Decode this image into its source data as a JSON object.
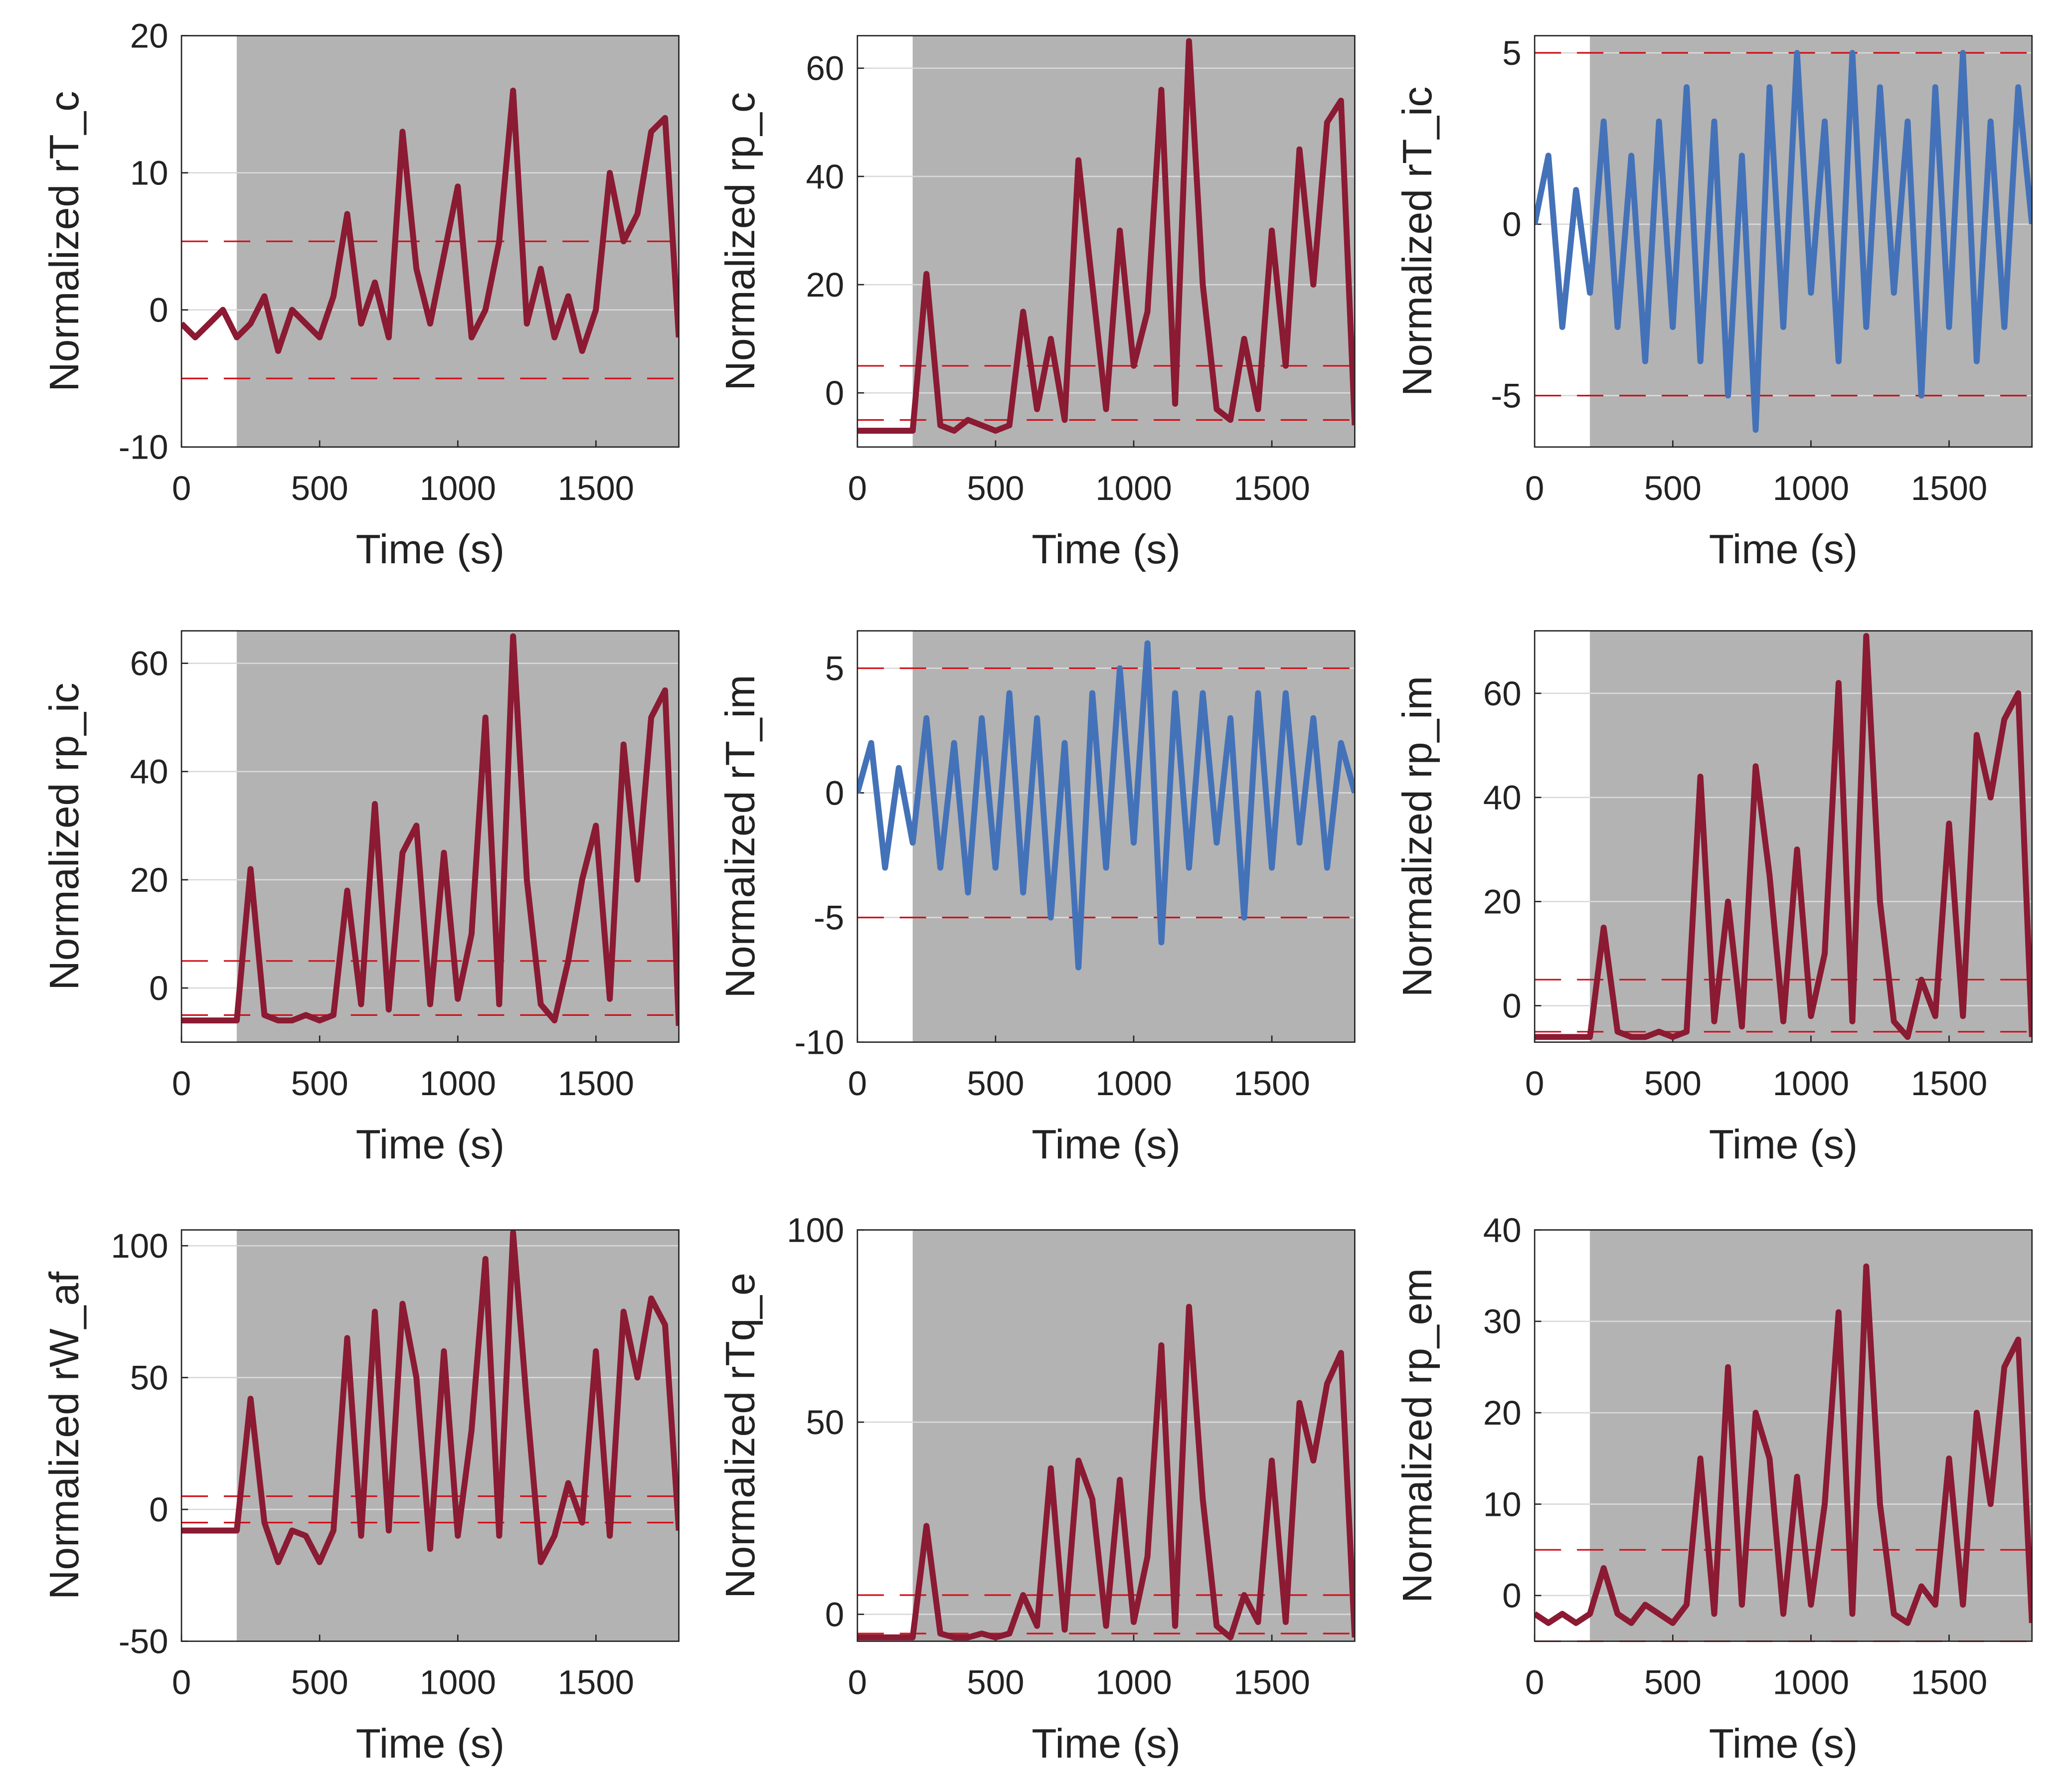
{
  "chart_data": [
    {
      "type": "line",
      "ylabel": "Normalized rT_c",
      "xlabel": "Time (s)",
      "xlim": [
        0,
        1800
      ],
      "xticks": [
        0,
        500,
        1000,
        1500
      ],
      "ylim": [
        -10,
        20
      ],
      "yticks": [
        -10,
        0,
        10,
        20
      ],
      "grid": true,
      "shaded_xrange": [
        200,
        1800
      ],
      "threshold_lines": [
        -5,
        5
      ],
      "x": [
        0,
        50,
        100,
        150,
        200,
        250,
        300,
        350,
        400,
        450,
        500,
        550,
        600,
        650,
        700,
        750,
        800,
        850,
        900,
        950,
        1000,
        1050,
        1100,
        1150,
        1200,
        1250,
        1300,
        1350,
        1400,
        1450,
        1500,
        1550,
        1600,
        1650,
        1700,
        1750,
        1800
      ],
      "series": [
        {
          "color": "#8b1a33",
          "values": [
            -1,
            -2,
            -1,
            0,
            -2,
            -1,
            1,
            -3,
            0,
            -1,
            -2,
            1,
            7,
            -1,
            2,
            -2,
            13,
            3,
            -1,
            4,
            9,
            -2,
            0,
            5,
            16,
            -1,
            3,
            -2,
            1,
            -3,
            0,
            10,
            5,
            7,
            13,
            14,
            -2
          ]
        }
      ]
    },
    {
      "type": "line",
      "ylabel": "Normalized rp_c",
      "xlabel": "Time (s)",
      "xlim": [
        0,
        1800
      ],
      "xticks": [
        0,
        500,
        1000,
        1500
      ],
      "ylim": [
        -10,
        66
      ],
      "yticks": [
        0,
        20,
        40,
        60
      ],
      "grid": true,
      "shaded_xrange": [
        200,
        1800
      ],
      "threshold_lines": [
        -5,
        5
      ],
      "x": [
        0,
        50,
        100,
        150,
        200,
        250,
        300,
        350,
        400,
        450,
        500,
        550,
        600,
        650,
        700,
        750,
        800,
        850,
        900,
        950,
        1000,
        1050,
        1100,
        1150,
        1200,
        1250,
        1300,
        1350,
        1400,
        1450,
        1500,
        1550,
        1600,
        1650,
        1700,
        1750,
        1800
      ],
      "series": [
        {
          "color": "#8b1a33",
          "values": [
            -7,
            -7,
            -7,
            -7,
            -7,
            22,
            -6,
            -7,
            -5,
            -6,
            -7,
            -6,
            15,
            -3,
            10,
            -5,
            43,
            20,
            -3,
            30,
            5,
            15,
            56,
            -2,
            65,
            20,
            -3,
            -5,
            10,
            -3,
            30,
            5,
            45,
            20,
            50,
            54,
            -6
          ]
        }
      ]
    },
    {
      "type": "line",
      "ylabel": "Normalized rT_ic",
      "xlabel": "Time (s)",
      "xlim": [
        0,
        1800
      ],
      "xticks": [
        0,
        500,
        1000,
        1500
      ],
      "ylim": [
        -6.5,
        5.5
      ],
      "yticks": [
        -5,
        0,
        5
      ],
      "grid": true,
      "shaded_xrange": [
        200,
        1800
      ],
      "threshold_lines": [
        -5,
        5
      ],
      "x": [
        0,
        50,
        100,
        150,
        200,
        250,
        300,
        350,
        400,
        450,
        500,
        550,
        600,
        650,
        700,
        750,
        800,
        850,
        900,
        950,
        1000,
        1050,
        1100,
        1150,
        1200,
        1250,
        1300,
        1350,
        1400,
        1450,
        1500,
        1550,
        1600,
        1650,
        1700,
        1750,
        1800
      ],
      "series": [
        {
          "color": "#4472b8",
          "values": [
            0,
            2,
            -3,
            1,
            -2,
            3,
            -3,
            2,
            -4,
            3,
            -3,
            4,
            -4,
            3,
            -5,
            2,
            -6,
            4,
            -3,
            5,
            -2,
            3,
            -4,
            5,
            -3,
            4,
            -2,
            3,
            -5,
            4,
            -3,
            5,
            -4,
            3,
            -3,
            4,
            0
          ]
        }
      ]
    },
    {
      "type": "line",
      "ylabel": "Normalized rp_ic",
      "xlabel": "Time (s)",
      "xlim": [
        0,
        1800
      ],
      "xticks": [
        0,
        500,
        1000,
        1500
      ],
      "ylim": [
        -10,
        66
      ],
      "yticks": [
        0,
        20,
        40,
        60
      ],
      "grid": true,
      "shaded_xrange": [
        200,
        1800
      ],
      "threshold_lines": [
        -5,
        5
      ],
      "x": [
        0,
        50,
        100,
        150,
        200,
        250,
        300,
        350,
        400,
        450,
        500,
        550,
        600,
        650,
        700,
        750,
        800,
        850,
        900,
        950,
        1000,
        1050,
        1100,
        1150,
        1200,
        1250,
        1300,
        1350,
        1400,
        1450,
        1500,
        1550,
        1600,
        1650,
        1700,
        1750,
        1800
      ],
      "series": [
        {
          "color": "#8b1a33",
          "values": [
            -6,
            -6,
            -6,
            -6,
            -6,
            22,
            -5,
            -6,
            -6,
            -5,
            -6,
            -5,
            18,
            -3,
            34,
            -4,
            25,
            30,
            -3,
            25,
            -2,
            10,
            50,
            -3,
            65,
            20,
            -3,
            -6,
            5,
            20,
            30,
            -2,
            45,
            20,
            50,
            55,
            -7
          ]
        }
      ]
    },
    {
      "type": "line",
      "ylabel": "Normalized rT_im",
      "xlabel": "Time (s)",
      "xlim": [
        0,
        1800
      ],
      "xticks": [
        0,
        500,
        1000,
        1500
      ],
      "ylim": [
        -10,
        6.5
      ],
      "yticks": [
        -10,
        -5,
        0,
        5
      ],
      "grid": true,
      "shaded_xrange": [
        200,
        1800
      ],
      "threshold_lines": [
        -5,
        5
      ],
      "x": [
        0,
        50,
        100,
        150,
        200,
        250,
        300,
        350,
        400,
        450,
        500,
        550,
        600,
        650,
        700,
        750,
        800,
        850,
        900,
        950,
        1000,
        1050,
        1100,
        1150,
        1200,
        1250,
        1300,
        1350,
        1400,
        1450,
        1500,
        1550,
        1600,
        1650,
        1700,
        1750,
        1800
      ],
      "series": [
        {
          "color": "#4472b8",
          "values": [
            0,
            2,
            -3,
            1,
            -2,
            3,
            -3,
            2,
            -4,
            3,
            -3,
            4,
            -4,
            3,
            -5,
            2,
            -7,
            4,
            -3,
            5,
            -2,
            6,
            -6,
            4,
            -3,
            4,
            -2,
            3,
            -5,
            4,
            -3,
            4,
            -2,
            3,
            -3,
            2,
            0
          ]
        }
      ]
    },
    {
      "type": "line",
      "ylabel": "Normalized rp_im",
      "xlabel": "Time (s)",
      "xlim": [
        0,
        1800
      ],
      "xticks": [
        0,
        500,
        1000,
        1500
      ],
      "ylim": [
        -7,
        72
      ],
      "yticks": [
        0,
        20,
        40,
        60
      ],
      "grid": true,
      "shaded_xrange": [
        200,
        1800
      ],
      "threshold_lines": [
        -5,
        5
      ],
      "x": [
        0,
        50,
        100,
        150,
        200,
        250,
        300,
        350,
        400,
        450,
        500,
        550,
        600,
        650,
        700,
        750,
        800,
        850,
        900,
        950,
        1000,
        1050,
        1100,
        1150,
        1200,
        1250,
        1300,
        1350,
        1400,
        1450,
        1500,
        1550,
        1600,
        1650,
        1700,
        1750,
        1800
      ],
      "series": [
        {
          "color": "#8b1a33",
          "values": [
            -6,
            -6,
            -6,
            -6,
            -6,
            15,
            -5,
            -6,
            -6,
            -5,
            -6,
            -5,
            44,
            -3,
            20,
            -4,
            46,
            25,
            -3,
            30,
            -2,
            10,
            62,
            -3,
            71,
            20,
            -3,
            -6,
            5,
            -2,
            35,
            -2,
            52,
            40,
            55,
            60,
            -6
          ]
        }
      ]
    },
    {
      "type": "line",
      "ylabel": "Normalized rW_af",
      "xlabel": "Time (s)",
      "xlim": [
        0,
        1800
      ],
      "xticks": [
        0,
        500,
        1000,
        1500
      ],
      "ylim": [
        -50,
        106
      ],
      "yticks": [
        -50,
        0,
        50,
        100
      ],
      "grid": true,
      "shaded_xrange": [
        200,
        1800
      ],
      "threshold_lines": [
        -5,
        5
      ],
      "x": [
        0,
        50,
        100,
        150,
        200,
        250,
        300,
        350,
        400,
        450,
        500,
        550,
        600,
        650,
        700,
        750,
        800,
        850,
        900,
        950,
        1000,
        1050,
        1100,
        1150,
        1200,
        1250,
        1300,
        1350,
        1400,
        1450,
        1500,
        1550,
        1600,
        1650,
        1700,
        1750,
        1800
      ],
      "series": [
        {
          "color": "#8b1a33",
          "values": [
            -8,
            -8,
            -8,
            -8,
            -8,
            42,
            -5,
            -20,
            -8,
            -10,
            -20,
            -8,
            65,
            -10,
            75,
            -8,
            78,
            50,
            -15,
            60,
            -10,
            30,
            95,
            -10,
            105,
            40,
            -20,
            -10,
            10,
            -5,
            60,
            -10,
            75,
            50,
            80,
            70,
            -8
          ]
        }
      ]
    },
    {
      "type": "line",
      "ylabel": "Normalized rTq_e",
      "xlabel": "Time (s)",
      "xlim": [
        0,
        1800
      ],
      "xticks": [
        0,
        500,
        1000,
        1500
      ],
      "ylim": [
        -7,
        100
      ],
      "yticks": [
        0,
        50,
        100
      ],
      "grid": true,
      "shaded_xrange": [
        200,
        1800
      ],
      "threshold_lines": [
        -5,
        5
      ],
      "x": [
        0,
        50,
        100,
        150,
        200,
        250,
        300,
        350,
        400,
        450,
        500,
        550,
        600,
        650,
        700,
        750,
        800,
        850,
        900,
        950,
        1000,
        1050,
        1100,
        1150,
        1200,
        1250,
        1300,
        1350,
        1400,
        1450,
        1500,
        1550,
        1600,
        1650,
        1700,
        1750,
        1800
      ],
      "series": [
        {
          "color": "#8b1a33",
          "values": [
            -6,
            -6,
            -6,
            -6,
            -6,
            23,
            -5,
            -6,
            -6,
            -5,
            -6,
            -5,
            5,
            -3,
            38,
            -4,
            40,
            30,
            -3,
            35,
            -2,
            15,
            70,
            -3,
            80,
            30,
            -3,
            -6,
            5,
            -2,
            40,
            -2,
            55,
            40,
            60,
            68,
            -6
          ]
        }
      ]
    },
    {
      "type": "line",
      "ylabel": "Normalized rp_em",
      "xlabel": "Time (s)",
      "xlim": [
        0,
        1800
      ],
      "xticks": [
        0,
        500,
        1000,
        1500
      ],
      "ylim": [
        -5,
        40
      ],
      "yticks": [
        0,
        10,
        20,
        30,
        40
      ],
      "grid": true,
      "shaded_xrange": [
        200,
        1800
      ],
      "threshold_lines": [
        -5,
        5
      ],
      "x": [
        0,
        50,
        100,
        150,
        200,
        250,
        300,
        350,
        400,
        450,
        500,
        550,
        600,
        650,
        700,
        750,
        800,
        850,
        900,
        950,
        1000,
        1050,
        1100,
        1150,
        1200,
        1250,
        1300,
        1350,
        1400,
        1450,
        1500,
        1550,
        1600,
        1650,
        1700,
        1750,
        1800
      ],
      "series": [
        {
          "color": "#8b1a33",
          "values": [
            -2,
            -3,
            -2,
            -3,
            -2,
            3,
            -2,
            -3,
            -1,
            -2,
            -3,
            -1,
            15,
            -2,
            25,
            -1,
            20,
            15,
            -2,
            13,
            -1,
            10,
            31,
            -2,
            36,
            10,
            -2,
            -3,
            1,
            -1,
            15,
            -1,
            20,
            10,
            25,
            28,
            -3
          ]
        }
      ]
    }
  ]
}
